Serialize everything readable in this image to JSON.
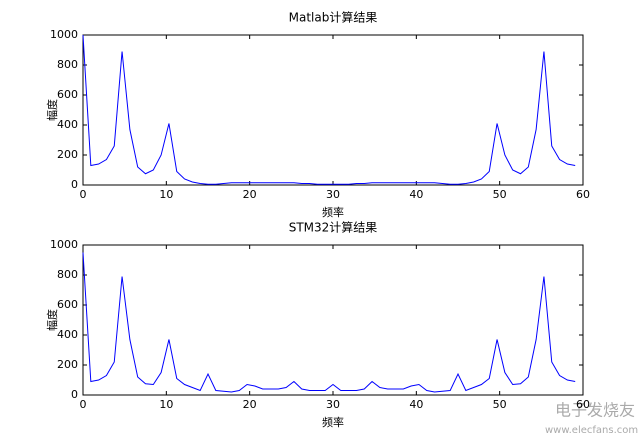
{
  "chart_data": [
    {
      "type": "line",
      "title": "Matlab计算结果",
      "xlabel": "频率",
      "ylabel": "幅度",
      "x": [
        0,
        0.9375,
        1.875,
        2.8125,
        3.75,
        4.6875,
        5.625,
        6.5625,
        7.5,
        8.4375,
        9.375,
        10.3125,
        11.25,
        12.1875,
        13.125,
        14.0625,
        15,
        15.9375,
        16.875,
        17.8125,
        18.75,
        19.6875,
        20.625,
        21.5625,
        22.5,
        23.4375,
        24.375,
        25.3125,
        26.25,
        27.1875,
        28.125,
        29.0625,
        30,
        30.9375,
        31.875,
        32.8125,
        33.75,
        34.6875,
        35.625,
        36.5625,
        37.5,
        38.4375,
        39.375,
        40.3125,
        41.25,
        42.1875,
        43.125,
        44.0625,
        45,
        45.9375,
        46.875,
        47.8125,
        48.75,
        49.6875,
        50.625,
        51.5625,
        52.5,
        53.4375,
        54.375,
        55.3125,
        56.25,
        57.1875,
        58.125,
        59.0625
      ],
      "series": [
        {
          "color": "#0000ff",
          "values": [
            1000,
            130,
            140,
            170,
            260,
            890,
            370,
            120,
            75,
            100,
            200,
            410,
            90,
            40,
            20,
            10,
            5,
            5,
            10,
            15,
            15,
            15,
            15,
            15,
            15,
            15,
            15,
            15,
            10,
            10,
            5,
            5,
            5,
            5,
            5,
            10,
            10,
            15,
            15,
            15,
            15,
            15,
            15,
            15,
            15,
            15,
            10,
            5,
            5,
            10,
            20,
            40,
            90,
            410,
            200,
            100,
            75,
            120,
            370,
            890,
            260,
            170,
            140,
            130
          ]
        }
      ],
      "xlim": [
        0,
        60
      ],
      "xticks": [
        0,
        10,
        20,
        30,
        40,
        50,
        60
      ],
      "ylim": [
        0,
        1000
      ],
      "yticks": [
        0,
        200,
        400,
        600,
        800,
        1000
      ]
    },
    {
      "type": "line",
      "title": "STM32计算结果",
      "xlabel": "频率",
      "ylabel": "幅度",
      "x": [
        0,
        0.9375,
        1.875,
        2.8125,
        3.75,
        4.6875,
        5.625,
        6.5625,
        7.5,
        8.4375,
        9.375,
        10.3125,
        11.25,
        12.1875,
        13.125,
        14.0625,
        15,
        15.9375,
        16.875,
        17.8125,
        18.75,
        19.6875,
        20.625,
        21.5625,
        22.5,
        23.4375,
        24.375,
        25.3125,
        26.25,
        27.1875,
        28.125,
        29.0625,
        30,
        30.9375,
        31.875,
        32.8125,
        33.75,
        34.6875,
        35.625,
        36.5625,
        37.5,
        38.4375,
        39.375,
        40.3125,
        41.25,
        42.1875,
        43.125,
        44.0625,
        45,
        45.9375,
        46.875,
        47.8125,
        48.75,
        49.6875,
        50.625,
        51.5625,
        52.5,
        53.4375,
        54.375,
        55.3125,
        56.25,
        57.1875,
        58.125,
        59.0625
      ],
      "series": [
        {
          "color": "#0000ff",
          "values": [
            950,
            90,
            100,
            130,
            220,
            790,
            370,
            120,
            75,
            70,
            150,
            370,
            110,
            70,
            50,
            30,
            140,
            30,
            25,
            20,
            30,
            70,
            60,
            40,
            40,
            40,
            50,
            90,
            40,
            30,
            30,
            30,
            70,
            30,
            30,
            30,
            40,
            90,
            50,
            40,
            40,
            40,
            60,
            70,
            30,
            20,
            25,
            30,
            140,
            30,
            50,
            70,
            110,
            370,
            150,
            70,
            75,
            120,
            370,
            790,
            220,
            130,
            100,
            90
          ]
        }
      ],
      "xlim": [
        0,
        60
      ],
      "xticks": [
        0,
        10,
        20,
        30,
        40,
        50,
        60
      ],
      "ylim": [
        0,
        1000
      ],
      "yticks": [
        0,
        200,
        400,
        600,
        800,
        1000
      ]
    }
  ],
  "watermark": {
    "text": "电子发烧友",
    "url": "www.elecfans.com"
  }
}
